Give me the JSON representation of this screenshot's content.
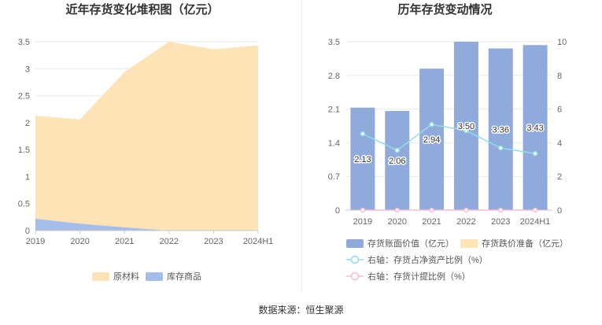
{
  "chart_data": [
    {
      "type": "area",
      "stacked": true,
      "title": "近年存货变化堆积图（亿元）",
      "categories": [
        "2019",
        "2020",
        "2021",
        "2022",
        "2023",
        "2024H1"
      ],
      "series": [
        {
          "name": "原材料",
          "values": [
            1.91,
            1.93,
            2.88,
            3.5,
            3.36,
            3.43
          ],
          "color": "#fde3b6"
        },
        {
          "name": "库存商品",
          "values": [
            0.22,
            0.13,
            0.06,
            0,
            0,
            0
          ],
          "color": "#a5bde9"
        }
      ],
      "ylim": [
        0,
        3.5
      ],
      "yticks": [
        0,
        0.5,
        1,
        1.5,
        2,
        2.5,
        3,
        3.5
      ],
      "grid": true,
      "legend": "bottom"
    },
    {
      "type": "bar",
      "title": "历年存货变动情况",
      "categories": [
        "2019",
        "2020",
        "2021",
        "2022",
        "2023",
        "2024H1"
      ],
      "series": [
        {
          "name": "存货账面价值（亿元）",
          "type": "bar",
          "axis": "left",
          "values": [
            2.13,
            2.06,
            2.94,
            3.5,
            3.36,
            3.43
          ],
          "data_labels": [
            "2.13",
            "2.06",
            "2.94",
            "3.50",
            "3.36",
            "3.43"
          ],
          "color": "#8eabdc"
        },
        {
          "name": "存货跌价准备（亿元）",
          "type": "bar",
          "axis": "left",
          "values": [
            0,
            0,
            0,
            0,
            0,
            0
          ],
          "color": "#fde3b6"
        },
        {
          "name": "右轴：存货占净资产比例（%）",
          "type": "line",
          "axis": "right",
          "values": [
            4.53,
            3.55,
            5.09,
            4.72,
            3.69,
            3.36
          ],
          "color": "#93dde7"
        },
        {
          "name": "右轴：存货计提比例（%）",
          "type": "line",
          "axis": "right",
          "values": [
            0,
            0,
            0,
            0,
            0,
            0
          ],
          "color": "#f5bcd2"
        }
      ],
      "ylim_left": [
        0,
        3.5
      ],
      "yticks_left": [
        0,
        0.7,
        1.4,
        2.1,
        2.8,
        3.5
      ],
      "ylim_right": [
        0,
        10
      ],
      "yticks_right": [
        0,
        2,
        4,
        6,
        8,
        10
      ],
      "grid": true,
      "legend": "bottom"
    }
  ],
  "footer": {
    "source": "数据来源：恒生聚源"
  }
}
